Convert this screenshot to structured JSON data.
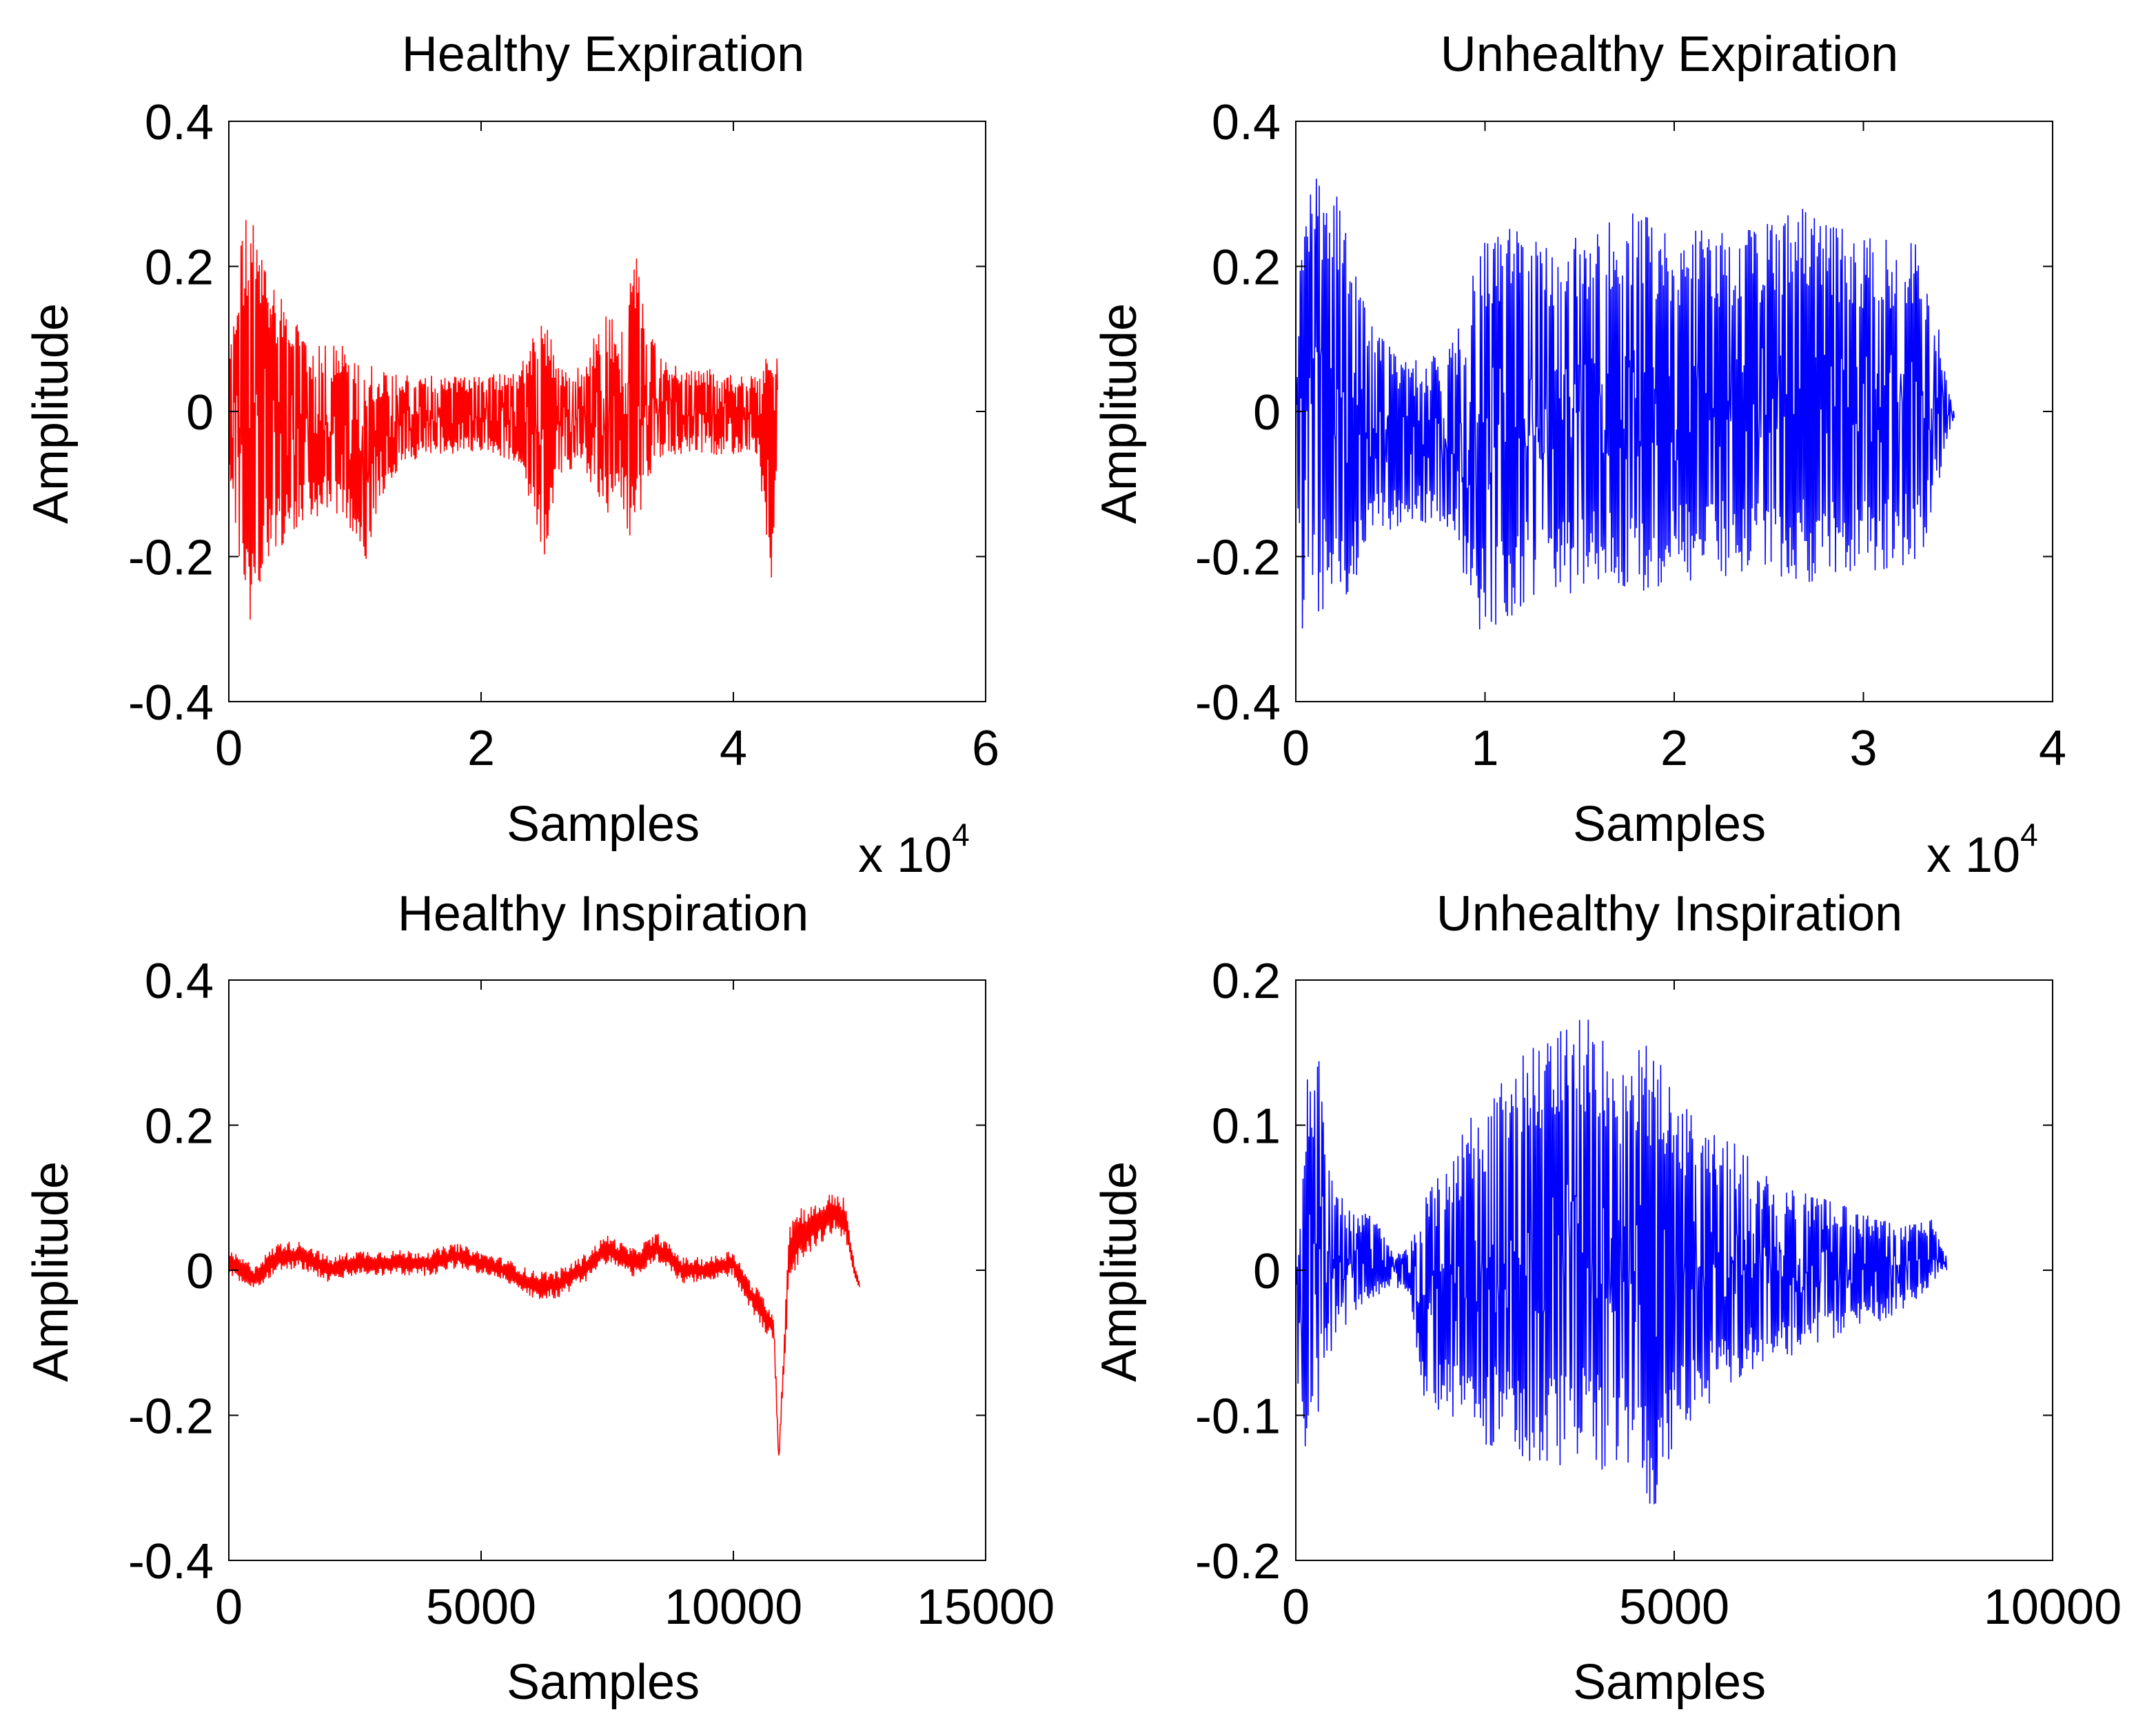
{
  "figure": {
    "background": "#ffffff",
    "colors": {
      "healthy": "#ff0000",
      "unhealthy": "#0000ff",
      "axis": "#000000"
    }
  },
  "chart_data": [
    {
      "id": "healthy-expiration",
      "type": "line",
      "title": "Healthy Expiration",
      "xlabel": "Samples",
      "ylabel": "Amplitude",
      "xlim": [
        0,
        60000
      ],
      "ylim": [
        -0.4,
        0.4
      ],
      "xticks": [
        0,
        20000,
        40000,
        60000
      ],
      "xtick_labels": [
        "0",
        "2",
        "4",
        "6"
      ],
      "yticks": [
        -0.4,
        -0.2,
        0,
        0.2,
        0.4
      ],
      "ytick_labels": [
        "-0.4",
        "-0.2",
        "0",
        "0.2",
        "0.4"
      ],
      "x_exponent_label": "x 10",
      "x_exponent_power": "4",
      "color": "#ff0000",
      "grid": false,
      "n_samples": 43500,
      "envelope": {
        "x": [
          0,
          500,
          1000,
          1500,
          2000,
          3000,
          4000,
          6000,
          8000,
          10000,
          11000,
          12000,
          14000,
          17000,
          20000,
          23000,
          25000,
          26000,
          28000,
          30000,
          31000,
          32000,
          33000,
          34000,
          36000,
          38000,
          40000,
          42000,
          43000,
          43500
        ],
        "upper": [
          0.07,
          0.15,
          0.25,
          0.28,
          0.26,
          0.2,
          0.17,
          0.1,
          0.09,
          0.1,
          0.07,
          0.06,
          0.05,
          0.05,
          0.05,
          0.06,
          0.14,
          0.07,
          0.06,
          0.15,
          0.1,
          0.24,
          0.16,
          0.08,
          0.06,
          0.06,
          0.05,
          0.05,
          0.1,
          0.08
        ],
        "lower": [
          -0.06,
          -0.2,
          -0.28,
          -0.33,
          -0.27,
          -0.21,
          -0.19,
          -0.15,
          -0.14,
          -0.17,
          -0.22,
          -0.12,
          -0.07,
          -0.06,
          -0.06,
          -0.07,
          -0.21,
          -0.1,
          -0.07,
          -0.16,
          -0.12,
          -0.19,
          -0.12,
          -0.07,
          -0.06,
          -0.06,
          -0.06,
          -0.06,
          -0.27,
          -0.04
        ]
      }
    },
    {
      "id": "unhealthy-expiration",
      "type": "line",
      "title": "Unhealthy Expiration",
      "xlabel": "Samples",
      "ylabel": "Amplitude",
      "xlim": [
        0,
        40000
      ],
      "ylim": [
        -0.4,
        0.4
      ],
      "xticks": [
        0,
        10000,
        20000,
        30000,
        40000
      ],
      "xtick_labels": [
        "0",
        "1",
        "2",
        "3",
        "4"
      ],
      "yticks": [
        -0.4,
        -0.2,
        0,
        0.2,
        0.4
      ],
      "ytick_labels": [
        "-0.4",
        "-0.2",
        "0",
        "0.2",
        "0.4"
      ],
      "x_exponent_label": "x 10",
      "x_exponent_power": "4",
      "color": "#0000ff",
      "grid": false,
      "n_samples": 34800,
      "envelope": {
        "x": [
          0,
          300,
          800,
          1500,
          2500,
          3500,
          4500,
          6000,
          8000,
          9500,
          10000,
          12000,
          15000,
          18000,
          20000,
          22000,
          25000,
          27000,
          29000,
          31000,
          33000,
          34000,
          34400,
          34800
        ],
        "upper": [
          0.03,
          0.25,
          0.33,
          0.35,
          0.27,
          0.19,
          0.11,
          0.07,
          0.08,
          0.2,
          0.26,
          0.25,
          0.25,
          0.28,
          0.25,
          0.25,
          0.26,
          0.29,
          0.25,
          0.24,
          0.23,
          0.12,
          0.05,
          0.0
        ],
        "lower": [
          -0.03,
          -0.32,
          -0.3,
          -0.29,
          -0.28,
          -0.22,
          -0.17,
          -0.15,
          -0.16,
          -0.3,
          -0.31,
          -0.27,
          -0.25,
          -0.25,
          -0.24,
          -0.23,
          -0.23,
          -0.24,
          -0.23,
          -0.22,
          -0.21,
          -0.1,
          -0.04,
          -0.01
        ]
      }
    },
    {
      "id": "healthy-inspiration",
      "type": "line",
      "title": "Healthy Inspiration",
      "xlabel": "Samples",
      "ylabel": "Amplitude",
      "xlim": [
        0,
        15000
      ],
      "ylim": [
        -0.4,
        0.4
      ],
      "xticks": [
        0,
        5000,
        10000,
        15000
      ],
      "xtick_labels": [
        "0",
        "5000",
        "10000",
        "15000"
      ],
      "yticks": [
        -0.4,
        -0.2,
        0,
        0.2,
        0.4
      ],
      "ytick_labels": [
        "-0.4",
        "-0.2",
        "0",
        "0.2",
        "0.4"
      ],
      "color": "#ff0000",
      "grid": false,
      "n_samples": 12500,
      "trend": {
        "x": [
          0,
          500,
          1000,
          1500,
          2000,
          2500,
          3000,
          3500,
          4000,
          4500,
          5000,
          5500,
          6000,
          6500,
          7000,
          7500,
          8000,
          8500,
          9000,
          9500,
          10000,
          10300,
          10600,
          10800,
          10900,
          11100,
          11300,
          11600,
          12000,
          12200,
          12400,
          12500
        ],
        "y": [
          0.01,
          -0.01,
          0.02,
          0.02,
          0.0,
          0.01,
          0.01,
          0.01,
          0.01,
          0.02,
          0.01,
          0.0,
          -0.02,
          -0.02,
          0.0,
          0.03,
          0.01,
          0.03,
          0.0,
          0.0,
          0.01,
          -0.03,
          -0.06,
          -0.08,
          -0.26,
          0.02,
          0.05,
          0.06,
          0.08,
          0.07,
          0.0,
          -0.02
        ]
      },
      "spread": [
        0.018,
        0.018,
        0.02,
        0.02,
        0.018,
        0.018,
        0.018,
        0.018,
        0.018,
        0.018,
        0.016,
        0.016,
        0.02,
        0.02,
        0.02,
        0.02,
        0.02,
        0.022,
        0.018,
        0.018,
        0.02,
        0.02,
        0.025,
        0.02,
        0.01,
        0.05,
        0.04,
        0.03,
        0.03,
        0.03,
        0.01,
        0.005
      ]
    },
    {
      "id": "unhealthy-inspiration",
      "type": "line",
      "title": "Unhealthy Inspiration",
      "xlabel": "Samples",
      "ylabel": "Amplitude",
      "xlim": [
        0,
        10000
      ],
      "ylim": [
        -0.2,
        0.2
      ],
      "xticks": [
        0,
        5000,
        10000
      ],
      "xtick_labels": [
        "0",
        "5000",
        "10000"
      ],
      "yticks": [
        -0.2,
        -0.1,
        0,
        0.1,
        0.2
      ],
      "ytick_labels": [
        "-0.2",
        "-0.1",
        "0",
        "0.1",
        "0.2"
      ],
      "color": "#0000ff",
      "grid": false,
      "n_samples": 8600,
      "envelope": {
        "x": [
          0,
          50,
          150,
          300,
          500,
          800,
          1000,
          1300,
          1500,
          1700,
          2000,
          2500,
          3000,
          3500,
          3800,
          4000,
          4300,
          4700,
          5000,
          5500,
          6000,
          6500,
          7000,
          7500,
          8000,
          8400,
          8600
        ],
        "upper": [
          0.0,
          0.03,
          0.14,
          0.15,
          0.06,
          0.04,
          0.04,
          0.01,
          0.02,
          0.05,
          0.08,
          0.12,
          0.15,
          0.17,
          0.18,
          0.16,
          0.15,
          0.16,
          0.12,
          0.1,
          0.08,
          0.06,
          0.05,
          0.04,
          0.03,
          0.035,
          0.01
        ],
        "lower": [
          -0.0,
          -0.14,
          -0.12,
          -0.1,
          -0.05,
          -0.03,
          -0.02,
          -0.01,
          -0.02,
          -0.09,
          -0.1,
          -0.12,
          -0.13,
          -0.14,
          -0.13,
          -0.14,
          -0.13,
          -0.17,
          -0.12,
          -0.09,
          -0.07,
          -0.06,
          -0.05,
          -0.04,
          -0.03,
          -0.01,
          0.0
        ]
      }
    }
  ]
}
